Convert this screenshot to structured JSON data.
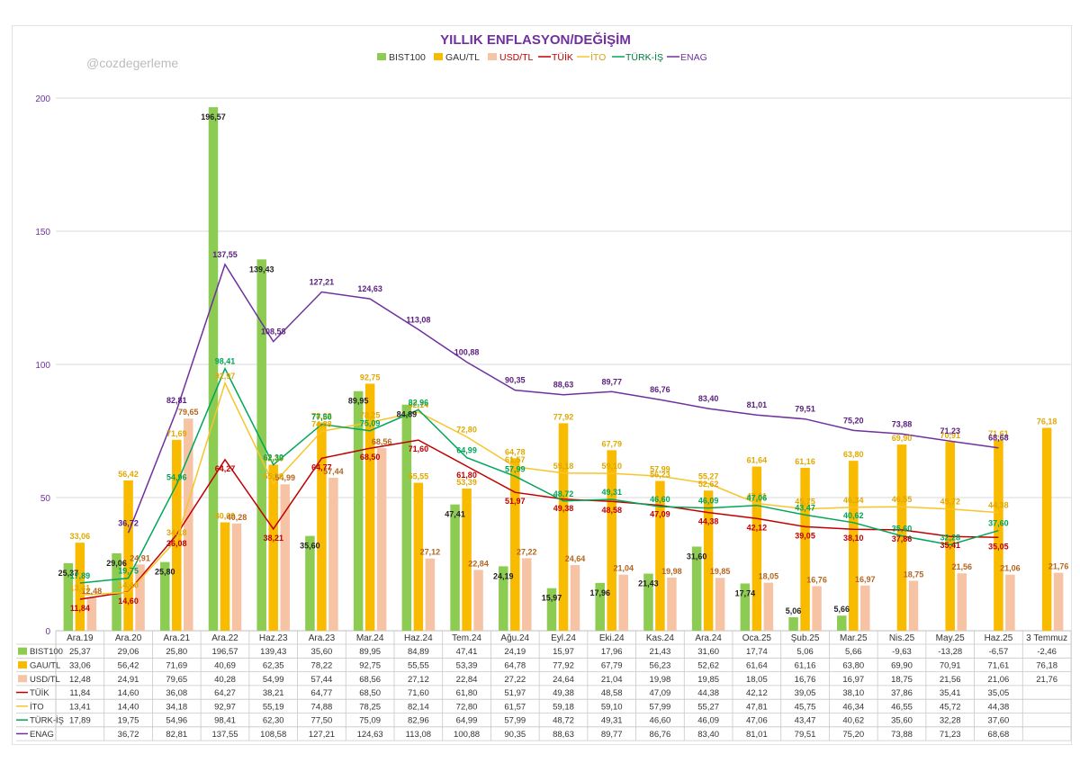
{
  "watermark": "@cozdegerleme",
  "colors": {
    "bist": "#8dcc52",
    "gau": "#f9bb00",
    "usd": "#f6c4a4",
    "tuik": "#c00000",
    "ito": "#f7c52a",
    "turkis": "#00a65a",
    "enag": "#7030a0",
    "title": "#7030a0",
    "axis": "#7030a0",
    "grid": "#d9d9d9"
  },
  "chart_data": {
    "type": "bar",
    "title": "YILLIK ENFLASYON/DEĞİŞİM",
    "xlabel": "",
    "ylabel": "",
    "ylim": [
      0,
      200
    ],
    "yticks": [
      0,
      50,
      100,
      150,
      200
    ],
    "grid": true,
    "legend_position": "top",
    "categories": [
      "Ara.19",
      "Ara.20",
      "Ara.21",
      "Ara.22",
      "Haz.23",
      "Ara.23",
      "Mar.24",
      "Haz.24",
      "Tem.24",
      "Ağu.24",
      "Eyl.24",
      "Eki.24",
      "Kas.24",
      "Ara.24",
      "Oca.25",
      "Şub.25",
      "Mar.25",
      "Nis.25",
      "May.25",
      "Haz.25",
      "3 Temmuz"
    ],
    "series": [
      {
        "key": "bist",
        "name": "BIST100",
        "kind": "bar",
        "values": [
          25.37,
          29.06,
          25.8,
          196.57,
          139.43,
          35.6,
          89.95,
          84.89,
          47.41,
          24.19,
          15.97,
          17.96,
          21.43,
          31.6,
          17.74,
          5.06,
          5.66,
          -9.63,
          -13.28,
          -6.57,
          -2.46
        ],
        "text": [
          "25,37",
          "29,06",
          "25,80",
          "196,57",
          "139,43",
          "35,60",
          "89,95",
          "84,89",
          "47,41",
          "24,19",
          "15,97",
          "17,96",
          "21,43",
          "31,60",
          "17,74",
          "5,06",
          "5,66",
          "-9,63",
          "-13,28",
          "-6,57",
          "-2,46"
        ]
      },
      {
        "key": "gau",
        "name": "GAU/TL",
        "kind": "bar",
        "values": [
          33.06,
          56.42,
          71.69,
          40.69,
          62.35,
          78.22,
          92.75,
          55.55,
          53.39,
          64.78,
          77.92,
          67.79,
          56.23,
          52.62,
          61.64,
          61.16,
          63.8,
          69.9,
          70.91,
          71.61,
          76.18
        ],
        "text": [
          "33,06",
          "56,42",
          "71,69",
          "40,69",
          "62,35",
          "78,22",
          "92,75",
          "55,55",
          "53,39",
          "64,78",
          "77,92",
          "67,79",
          "56,23",
          "52,62",
          "61,64",
          "61,16",
          "63,80",
          "69,90",
          "70,91",
          "71,61",
          "76,18"
        ]
      },
      {
        "key": "usd",
        "name": "USD/TL",
        "kind": "bar",
        "values": [
          12.48,
          24.91,
          79.65,
          40.28,
          54.99,
          57.44,
          68.56,
          27.12,
          22.84,
          27.22,
          24.64,
          21.04,
          19.98,
          19.85,
          18.05,
          16.76,
          16.97,
          18.75,
          21.56,
          21.06,
          21.76
        ],
        "text": [
          "12,48",
          "24,91",
          "79,65",
          "40,28",
          "54,99",
          "57,44",
          "68,56",
          "27,12",
          "22,84",
          "27,22",
          "24,64",
          "21,04",
          "19,98",
          "19,85",
          "18,05",
          "16,76",
          "16,97",
          "18,75",
          "21,56",
          "21,06",
          "21,76"
        ]
      },
      {
        "key": "tuik",
        "name": "TÜİK",
        "kind": "line",
        "values": [
          11.84,
          14.6,
          36.08,
          64.27,
          38.21,
          64.77,
          68.5,
          71.6,
          61.8,
          51.97,
          49.38,
          48.58,
          47.09,
          44.38,
          42.12,
          39.05,
          38.1,
          37.86,
          35.41,
          35.05,
          null
        ],
        "text": [
          "11,84",
          "14,60",
          "36,08",
          "64,27",
          "38,21",
          "64,77",
          "68,50",
          "71,60",
          "61,80",
          "51,97",
          "49,38",
          "48,58",
          "47,09",
          "44,38",
          "42,12",
          "39,05",
          "38,10",
          "37,86",
          "35,41",
          "35,05",
          ""
        ]
      },
      {
        "key": "ito",
        "name": "İTO",
        "kind": "line",
        "values": [
          13.41,
          14.4,
          34.18,
          92.97,
          55.19,
          74.88,
          78.25,
          82.14,
          72.8,
          61.57,
          59.18,
          59.1,
          57.99,
          55.27,
          47.81,
          45.75,
          46.34,
          46.55,
          45.72,
          44.38,
          null
        ],
        "text": [
          "13,41",
          "14,40",
          "34,18",
          "92,97",
          "55,19",
          "74,88",
          "78,25",
          "82,14",
          "72,80",
          "61,57",
          "59,18",
          "59,10",
          "57,99",
          "55,27",
          "47,81",
          "45,75",
          "46,34",
          "46,55",
          "45,72",
          "44,38",
          ""
        ]
      },
      {
        "key": "turkis",
        "name": "TÜRK-İŞ",
        "kind": "line",
        "values": [
          17.89,
          19.75,
          54.96,
          98.41,
          62.3,
          77.5,
          75.09,
          82.96,
          64.99,
          57.99,
          48.72,
          49.31,
          46.6,
          46.09,
          47.06,
          43.47,
          40.62,
          35.6,
          32.28,
          37.6,
          null
        ],
        "text": [
          "17,89",
          "19,75",
          "54,96",
          "98,41",
          "62,30",
          "77,50",
          "75,09",
          "82,96",
          "64,99",
          "57,99",
          "48,72",
          "49,31",
          "46,60",
          "46,09",
          "47,06",
          "43,47",
          "40,62",
          "35,60",
          "32,28",
          "37,60",
          ""
        ]
      },
      {
        "key": "enag",
        "name": "ENAG",
        "kind": "line",
        "values": [
          null,
          36.72,
          82.81,
          137.55,
          108.58,
          127.21,
          124.63,
          113.08,
          100.88,
          90.35,
          88.63,
          89.77,
          86.76,
          83.4,
          81.01,
          79.51,
          75.2,
          73.88,
          71.23,
          68.68,
          null
        ],
        "text": [
          "",
          "36,72",
          "82,81",
          "137,55",
          "108,58",
          "127,21",
          "124,63",
          "113,08",
          "100,88",
          "90,35",
          "88,63",
          "89,77",
          "86,76",
          "83,40",
          "81,01",
          "79,51",
          "75,20",
          "73,88",
          "71,23",
          "68,68",
          ""
        ]
      }
    ]
  }
}
